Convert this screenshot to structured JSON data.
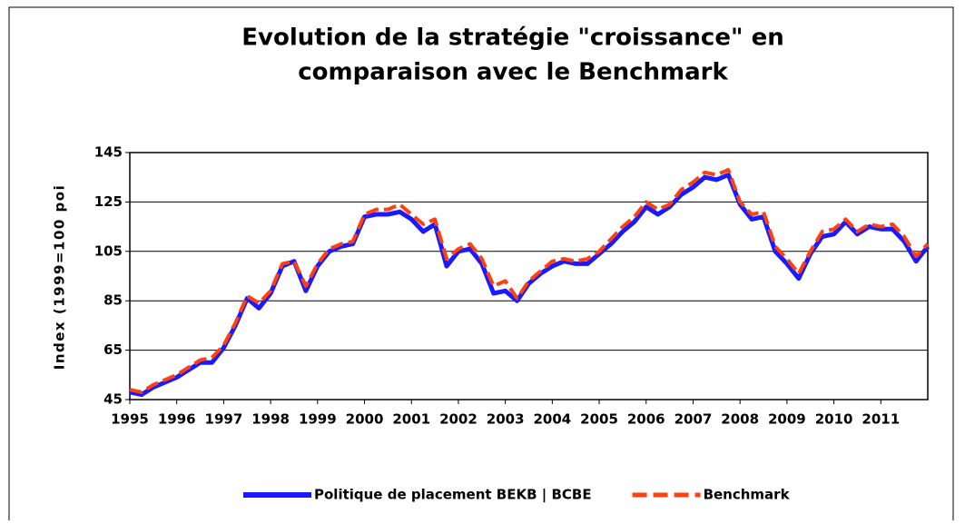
{
  "chart_data": {
    "type": "line",
    "title": "Evolution de la stratégie \"croissance\" en",
    "subtitle": "comparaison avec le Benchmark",
    "y_label": "Index  (1999=100 poi",
    "x": [
      1995,
      1995.25,
      1995.5,
      1995.75,
      1996,
      1996.25,
      1996.5,
      1996.75,
      1997,
      1997.25,
      1997.5,
      1997.75,
      1998,
      1998.25,
      1998.5,
      1998.75,
      1999,
      1999.25,
      1999.5,
      1999.75,
      2000,
      2000.25,
      2000.5,
      2000.75,
      2001,
      2001.25,
      2001.5,
      2001.75,
      2002,
      2002.25,
      2002.5,
      2002.75,
      2003,
      2003.25,
      2003.5,
      2003.75,
      2004,
      2004.25,
      2004.5,
      2004.75,
      2005,
      2005.25,
      2005.5,
      2005.75,
      2006,
      2006.25,
      2006.5,
      2006.75,
      2007,
      2007.25,
      2007.5,
      2007.75,
      2008,
      2008.25,
      2008.5,
      2008.75,
      2009,
      2009.25,
      2009.5,
      2009.75,
      2010,
      2010.25,
      2010.5,
      2010.75,
      2011,
      2011.25,
      2011.5,
      2011.75,
      2012
    ],
    "series": [
      {
        "name": "Politique de placement BEKB | BCBE",
        "color": "#1a1aff",
        "dash": false,
        "values": [
          48,
          47,
          50,
          52,
          54,
          57,
          60,
          60,
          66,
          75,
          86,
          82,
          88,
          99,
          101,
          89,
          99,
          105,
          107,
          108,
          119,
          120,
          120,
          121,
          118,
          113,
          116,
          99,
          105,
          106,
          100,
          88,
          89,
          85,
          92,
          96,
          99,
          101,
          100,
          100,
          104,
          108,
          113,
          117,
          123,
          120,
          123,
          128,
          131,
          135,
          134,
          136,
          124,
          118,
          119,
          105,
          100,
          94,
          104,
          111,
          112,
          117,
          112,
          115,
          114,
          114,
          109,
          101,
          107
        ]
      },
      {
        "name": "Benchmark",
        "color": "#ff4010",
        "dash": true,
        "values": [
          49,
          48,
          51,
          53,
          55,
          58,
          61,
          62,
          67,
          76,
          87,
          84,
          89,
          100,
          101,
          91,
          100,
          106,
          108,
          109,
          120,
          122,
          122,
          124,
          120,
          116,
          118,
          102,
          106,
          108,
          102,
          91,
          93,
          86,
          93,
          97,
          101,
          102,
          101,
          102,
          105,
          110,
          115,
          119,
          125,
          122,
          124,
          130,
          133,
          137,
          136,
          138,
          125,
          120,
          121,
          107,
          102,
          96,
          105,
          113,
          114,
          118,
          113,
          116,
          115,
          116,
          111,
          103,
          108
        ]
      }
    ],
    "xlim": [
      1995,
      2012
    ],
    "xticks": [
      1995,
      1996,
      1997,
      1998,
      1999,
      2000,
      2001,
      2002,
      2003,
      2004,
      2005,
      2006,
      2007,
      2008,
      2009,
      2010,
      2011
    ],
    "ylim": [
      45,
      145
    ],
    "yticks": [
      45,
      65,
      85,
      105,
      125,
      145
    ],
    "grid": true,
    "legend": "bottom"
  }
}
